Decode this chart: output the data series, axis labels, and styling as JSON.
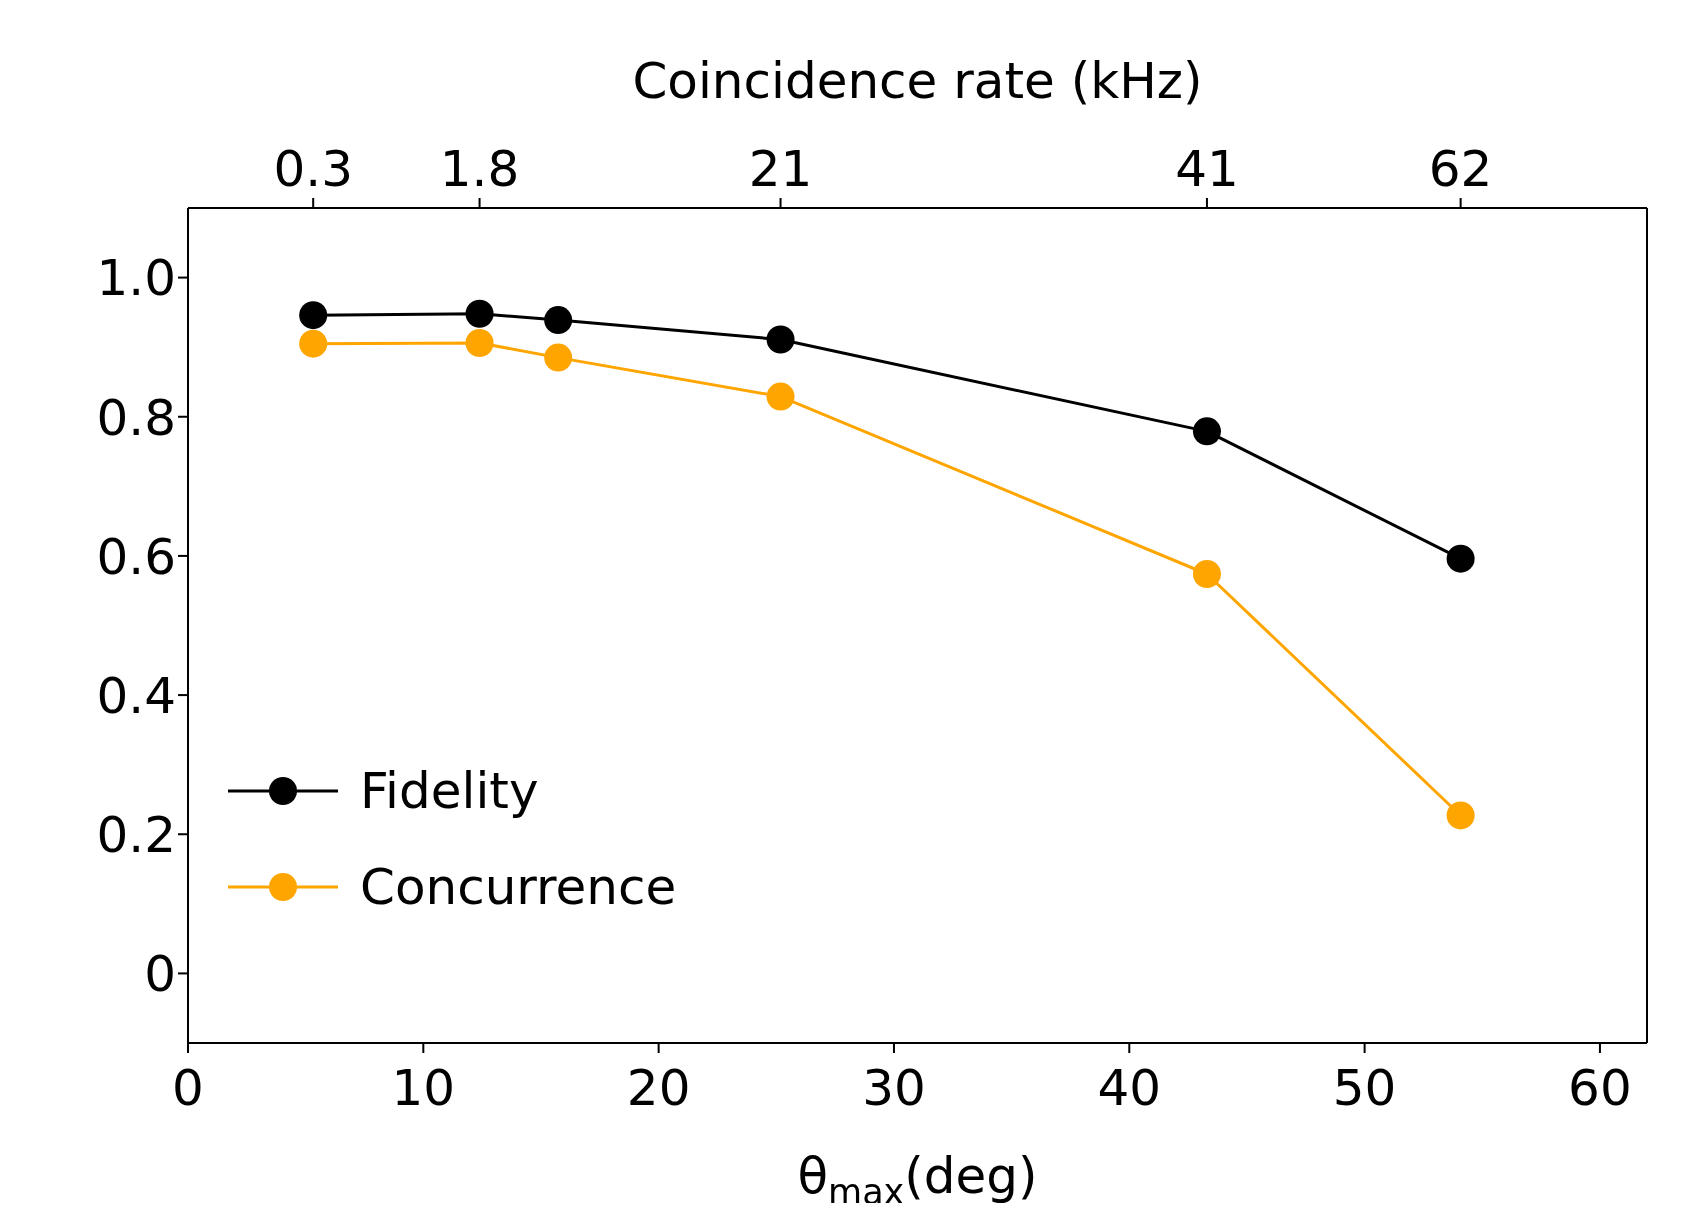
{
  "chart_data": {
    "type": "line",
    "xlabel": "θ$_{max}$(deg)",
    "x2label": "Coincidence rate (kHz)",
    "xlim": [
      0,
      62
    ],
    "xticks": [
      0,
      10,
      20,
      30,
      40,
      50,
      60
    ],
    "annotations": [
      {
        "text": "0.3",
        "x": 5.32
      },
      {
        "text": "1.8",
        "x": 12.39
      },
      {
        "text": "21",
        "x": 25.18
      },
      {
        "text": "41",
        "x": 43.3
      },
      {
        "text": "62",
        "x": 54.08
      }
    ],
    "ylim": [
      -0.1,
      1.1
    ],
    "yticks": [
      {
        "value": 0,
        "label": "0"
      },
      0.2,
      0.4,
      0.6,
      0.8,
      {
        "value": 1,
        "label": "1.0"
      }
    ],
    "x": [
      5.32,
      12.39,
      15.73,
      25.18,
      43.3,
      54.08
    ],
    "series": [
      {
        "name": "Fidelity",
        "color": "#000000",
        "values": [
          0.946,
          0.948,
          0.939,
          0.911,
          0.779,
          0.596
        ]
      },
      {
        "name": "Concurrence",
        "color": "#ffa500",
        "values": [
          0.905,
          0.906,
          0.885,
          0.829,
          0.574,
          0.227
        ]
      }
    ],
    "marker": "circle",
    "line_style": "solid",
    "grid": false,
    "legend": "bottom left"
  }
}
